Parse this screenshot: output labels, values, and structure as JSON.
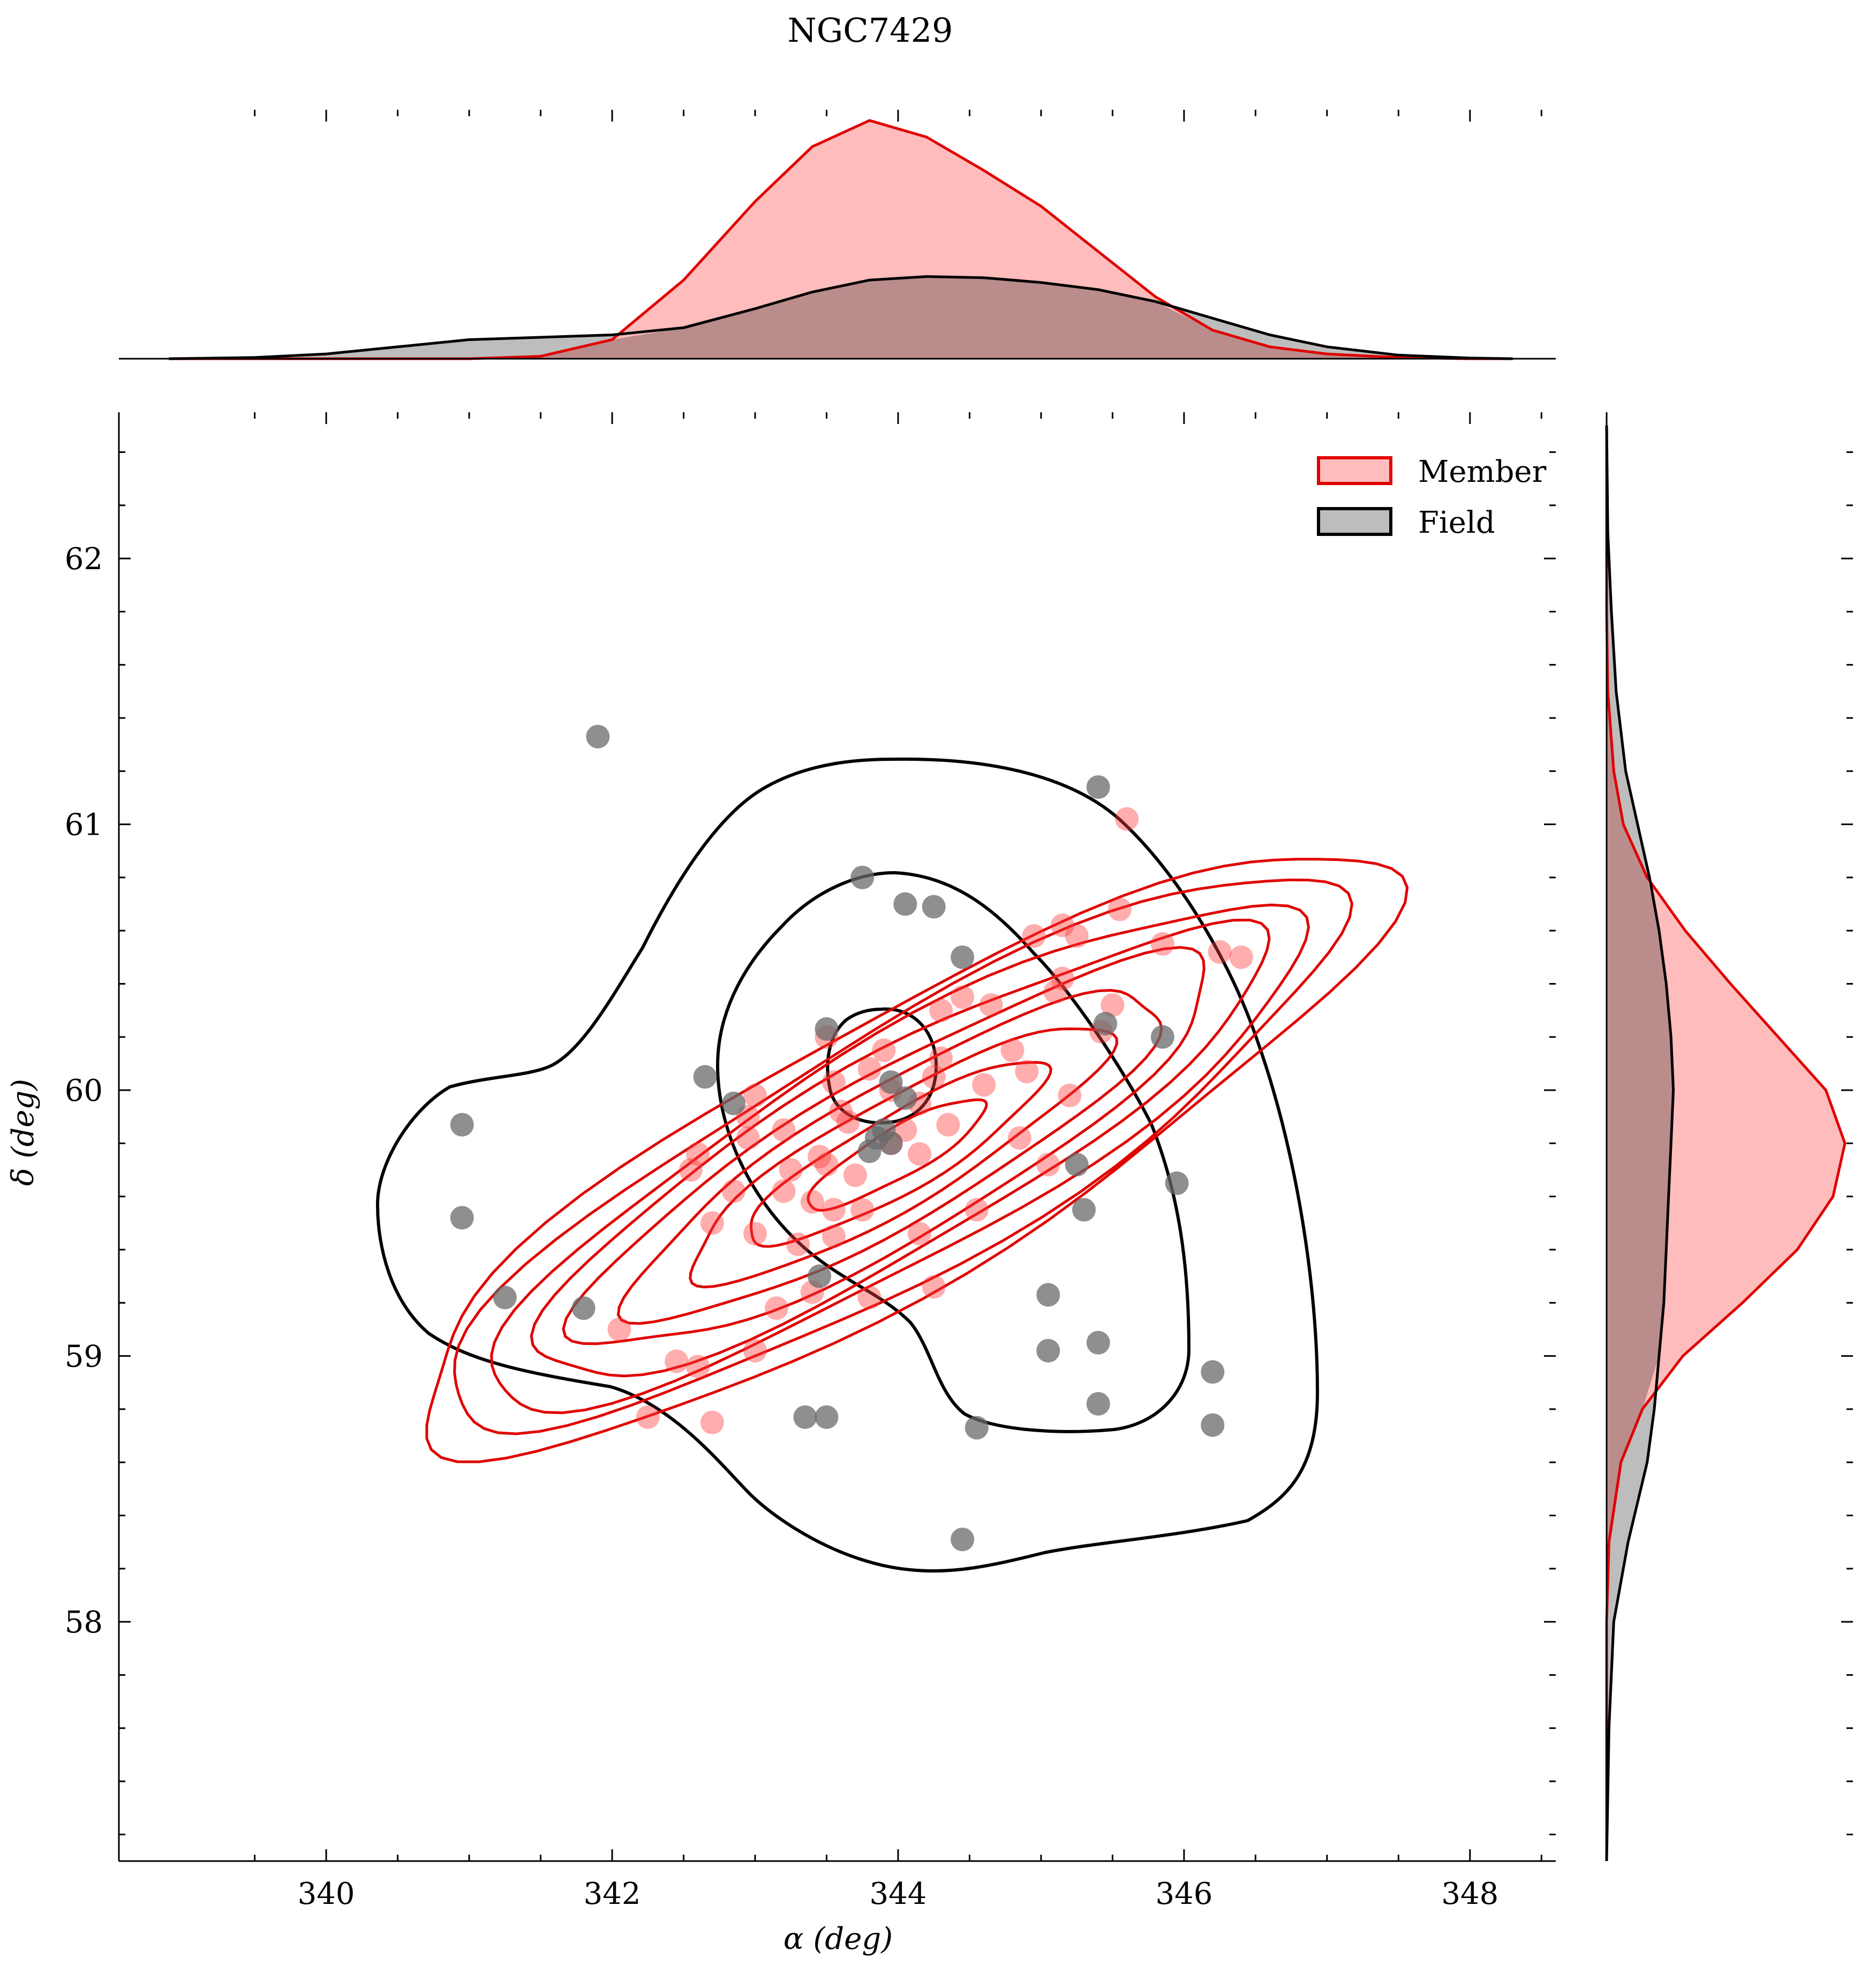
{
  "chart_data": {
    "type": "scatter",
    "title": "NGC7429",
    "xlabel": "α (deg)",
    "ylabel": "δ (deg)",
    "xlim": [
      338.55,
      348.6
    ],
    "ylim": [
      57.1,
      62.55
    ],
    "xticks": [
      340,
      342,
      344,
      346,
      348
    ],
    "yticks": [
      58,
      59,
      60,
      61,
      62
    ],
    "legend": {
      "location": "top-right",
      "entries": [
        "Member",
        "Field"
      ]
    },
    "grid": false,
    "colors": {
      "member_line": "#e00000",
      "member_fill": "#ffbcbc",
      "field_line": "#000000",
      "field_fill": "#bdbdbd",
      "member_point": "#ff3b3b",
      "field_point": "#6a6a6a",
      "overlap_fill": "#bb8c8c"
    },
    "series": [
      {
        "name": "Member",
        "points": [
          [
            345.6,
            61.02
          ],
          [
            345.55,
            60.68
          ],
          [
            345.15,
            60.62
          ],
          [
            345.25,
            60.58
          ],
          [
            344.95,
            60.58
          ],
          [
            345.85,
            60.55
          ],
          [
            346.25,
            60.52
          ],
          [
            346.4,
            60.5
          ],
          [
            345.15,
            60.42
          ],
          [
            345.1,
            60.37
          ],
          [
            344.45,
            60.35
          ],
          [
            344.3,
            60.3
          ],
          [
            344.65,
            60.32
          ],
          [
            345.5,
            60.32
          ],
          [
            345.42,
            60.22
          ],
          [
            344.8,
            60.15
          ],
          [
            343.5,
            60.2
          ],
          [
            343.9,
            60.15
          ],
          [
            344.3,
            60.12
          ],
          [
            343.8,
            60.08
          ],
          [
            344.9,
            60.07
          ],
          [
            344.6,
            60.02
          ],
          [
            344.25,
            60.05
          ],
          [
            343.55,
            60.03
          ],
          [
            344.15,
            59.95
          ],
          [
            343.0,
            59.98
          ],
          [
            343.2,
            59.85
          ],
          [
            342.95,
            59.82
          ],
          [
            343.65,
            59.88
          ],
          [
            344.35,
            59.87
          ],
          [
            344.85,
            59.82
          ],
          [
            343.45,
            59.75
          ],
          [
            343.95,
            59.8
          ],
          [
            344.15,
            59.76
          ],
          [
            342.6,
            59.76
          ],
          [
            342.55,
            59.7
          ],
          [
            343.25,
            59.7
          ],
          [
            343.5,
            59.72
          ],
          [
            343.7,
            59.68
          ],
          [
            345.05,
            59.72
          ],
          [
            345.2,
            59.98
          ],
          [
            343.2,
            59.62
          ],
          [
            342.85,
            59.62
          ],
          [
            343.55,
            59.55
          ],
          [
            343.75,
            59.55
          ],
          [
            344.55,
            59.55
          ],
          [
            342.7,
            59.5
          ],
          [
            343.0,
            59.46
          ],
          [
            343.3,
            59.42
          ],
          [
            343.55,
            59.45
          ],
          [
            344.15,
            59.46
          ],
          [
            343.4,
            59.24
          ],
          [
            343.15,
            59.18
          ],
          [
            343.8,
            59.22
          ],
          [
            344.25,
            59.26
          ],
          [
            342.05,
            59.1
          ],
          [
            343.0,
            59.02
          ],
          [
            342.45,
            58.98
          ],
          [
            342.6,
            58.96
          ],
          [
            342.25,
            58.77
          ],
          [
            342.7,
            58.75
          ],
          [
            342.95,
            59.9
          ],
          [
            343.4,
            59.58
          ],
          [
            344.05,
            59.85
          ],
          [
            343.95,
            60.0
          ],
          [
            343.6,
            59.92
          ]
        ]
      },
      {
        "name": "Field",
        "points": [
          [
            341.9,
            61.33
          ],
          [
            345.4,
            61.14
          ],
          [
            343.75,
            60.8
          ],
          [
            344.05,
            60.7
          ],
          [
            344.25,
            60.69
          ],
          [
            344.45,
            60.5
          ],
          [
            343.5,
            60.23
          ],
          [
            345.45,
            60.25
          ],
          [
            345.85,
            60.2
          ],
          [
            342.65,
            60.05
          ],
          [
            343.95,
            60.03
          ],
          [
            344.05,
            59.97
          ],
          [
            342.85,
            59.95
          ],
          [
            340.95,
            59.87
          ],
          [
            343.85,
            59.82
          ],
          [
            343.9,
            59.85
          ],
          [
            343.95,
            59.8
          ],
          [
            343.8,
            59.77
          ],
          [
            345.25,
            59.72
          ],
          [
            345.95,
            59.65
          ],
          [
            345.3,
            59.55
          ],
          [
            340.95,
            59.52
          ],
          [
            343.45,
            59.3
          ],
          [
            341.25,
            59.22
          ],
          [
            345.05,
            59.23
          ],
          [
            341.8,
            59.18
          ],
          [
            345.4,
            59.05
          ],
          [
            345.05,
            59.02
          ],
          [
            346.2,
            58.94
          ],
          [
            345.4,
            58.82
          ],
          [
            343.35,
            58.77
          ],
          [
            343.5,
            58.77
          ],
          [
            344.55,
            58.73
          ],
          [
            346.2,
            58.74
          ],
          [
            344.45,
            58.31
          ]
        ]
      }
    ],
    "marginal_x": {
      "x": [
        338.9,
        339.5,
        340.0,
        340.5,
        341.0,
        341.5,
        342.0,
        342.5,
        343.0,
        343.4,
        343.8,
        344.2,
        344.6,
        345.0,
        345.4,
        345.8,
        346.2,
        346.6,
        347.0,
        347.5,
        348.0,
        348.3
      ],
      "Member": [
        0.0,
        0.0,
        0.0,
        0.0,
        0.0,
        0.01,
        0.08,
        0.33,
        0.66,
        0.89,
        1.0,
        0.93,
        0.79,
        0.64,
        0.45,
        0.26,
        0.12,
        0.05,
        0.02,
        0.005,
        0.0,
        0.0
      ],
      "Field": [
        0.0,
        0.005,
        0.02,
        0.05,
        0.08,
        0.09,
        0.1,
        0.13,
        0.21,
        0.28,
        0.33,
        0.345,
        0.34,
        0.32,
        0.29,
        0.24,
        0.17,
        0.1,
        0.05,
        0.015,
        0.003,
        0.0
      ]
    },
    "marginal_y": {
      "y": [
        57.1,
        57.6,
        58.0,
        58.3,
        58.6,
        58.8,
        59.0,
        59.2,
        59.4,
        59.6,
        59.8,
        60.0,
        60.2,
        60.4,
        60.6,
        60.8,
        61.0,
        61.2,
        61.5,
        61.8,
        62.1,
        62.5
      ],
      "Member": [
        0.0,
        0.0,
        0.0,
        0.01,
        0.06,
        0.15,
        0.32,
        0.57,
        0.8,
        0.95,
        1.0,
        0.92,
        0.72,
        0.52,
        0.33,
        0.17,
        0.07,
        0.03,
        0.005,
        0.0,
        0.0,
        0.0
      ],
      "Field": [
        0.0,
        0.01,
        0.03,
        0.09,
        0.17,
        0.2,
        0.22,
        0.24,
        0.25,
        0.26,
        0.27,
        0.28,
        0.27,
        0.25,
        0.22,
        0.18,
        0.13,
        0.08,
        0.04,
        0.02,
        0.005,
        0.0
      ]
    }
  }
}
